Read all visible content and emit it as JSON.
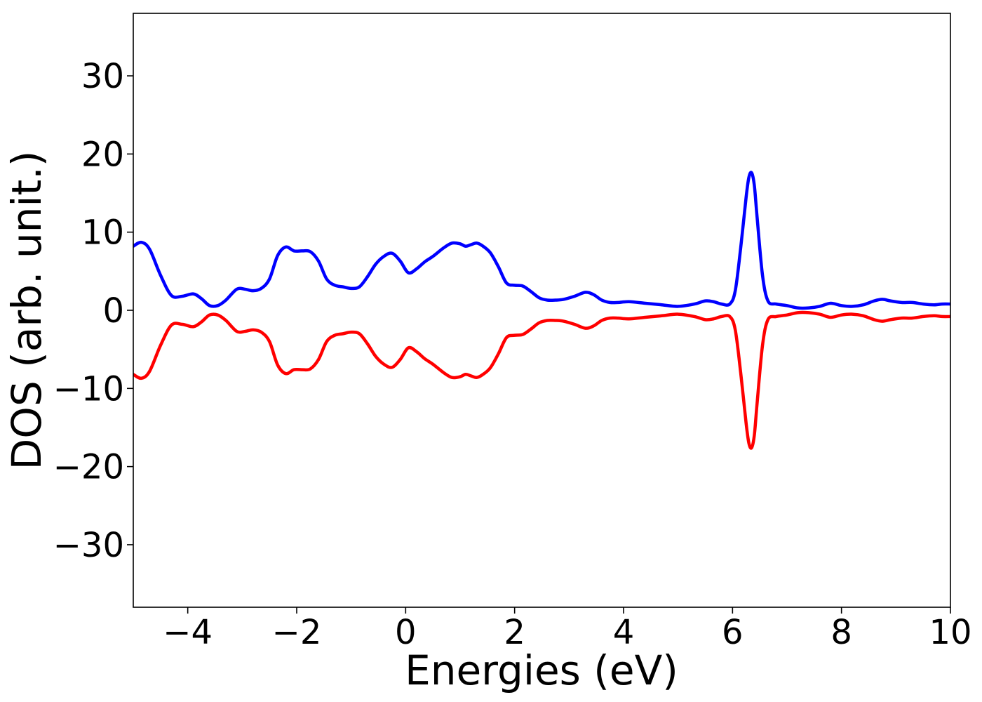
{
  "chart_data": {
    "type": "line",
    "title": "",
    "xlabel": "Energies (eV)",
    "ylabel": "DOS (arb. unit.)",
    "xlim": [
      -5,
      10
    ],
    "ylim": [
      -38,
      38
    ],
    "xticks": [
      -4,
      -2,
      0,
      2,
      4,
      6,
      8,
      10
    ],
    "xtick_labels": [
      "−4",
      "−2",
      "0",
      "2",
      "4",
      "6",
      "8",
      "10"
    ],
    "yticks": [
      -30,
      -20,
      -10,
      0,
      10,
      20,
      30
    ],
    "ytick_labels": [
      "−30",
      "−20",
      "−10",
      "0",
      "10",
      "20",
      "30"
    ],
    "grid": false,
    "legend": false,
    "series": [
      {
        "color": "#0000ff",
        "x": [
          -5.0,
          -4.85,
          -4.7,
          -4.5,
          -4.3,
          -4.1,
          -3.9,
          -3.75,
          -3.6,
          -3.45,
          -3.3,
          -3.1,
          -2.95,
          -2.8,
          -2.65,
          -2.5,
          -2.35,
          -2.2,
          -2.05,
          -1.9,
          -1.75,
          -1.6,
          -1.45,
          -1.3,
          -1.15,
          -1.0,
          -0.85,
          -0.7,
          -0.55,
          -0.4,
          -0.25,
          -0.1,
          0.05,
          0.2,
          0.35,
          0.5,
          0.7,
          0.85,
          1.0,
          1.1,
          1.2,
          1.3,
          1.4,
          1.55,
          1.7,
          1.85,
          2.0,
          2.15,
          2.3,
          2.45,
          2.6,
          2.75,
          2.9,
          3.1,
          3.3,
          3.45,
          3.6,
          3.75,
          3.9,
          4.1,
          4.4,
          4.7,
          5.0,
          5.3,
          5.5,
          5.65,
          5.8,
          5.95,
          6.05,
          6.15,
          6.25,
          6.3,
          6.35,
          6.4,
          6.45,
          6.55,
          6.65,
          6.8,
          7.0,
          7.2,
          7.4,
          7.6,
          7.8,
          8.0,
          8.2,
          8.4,
          8.6,
          8.75,
          8.9,
          9.1,
          9.3,
          9.5,
          9.7,
          9.85,
          10.0
        ],
        "y": [
          8.2,
          8.7,
          7.8,
          4.5,
          1.9,
          1.8,
          2.1,
          1.5,
          0.6,
          0.6,
          1.3,
          2.7,
          2.7,
          2.5,
          2.8,
          4.0,
          7.0,
          8.1,
          7.6,
          7.6,
          7.5,
          6.3,
          4.0,
          3.2,
          3.0,
          2.8,
          3.0,
          4.3,
          5.9,
          6.9,
          7.3,
          6.3,
          4.8,
          5.3,
          6.2,
          6.9,
          8.0,
          8.6,
          8.5,
          8.2,
          8.4,
          8.6,
          8.3,
          7.4,
          5.6,
          3.5,
          3.2,
          3.1,
          2.4,
          1.6,
          1.3,
          1.3,
          1.4,
          1.8,
          2.3,
          2.0,
          1.3,
          1.0,
          1.0,
          1.1,
          0.9,
          0.7,
          0.5,
          0.8,
          1.2,
          1.1,
          0.8,
          0.8,
          2.5,
          8.0,
          14.5,
          17.0,
          17.6,
          16.0,
          12.0,
          4.5,
          1.2,
          0.8,
          0.6,
          0.3,
          0.3,
          0.5,
          0.9,
          0.6,
          0.5,
          0.7,
          1.2,
          1.4,
          1.2,
          1.0,
          1.0,
          0.8,
          0.7,
          0.8,
          0.8
        ]
      },
      {
        "color": "#ff0000",
        "x": [
          -5.0,
          -4.85,
          -4.7,
          -4.5,
          -4.3,
          -4.1,
          -3.9,
          -3.75,
          -3.6,
          -3.45,
          -3.3,
          -3.1,
          -2.95,
          -2.8,
          -2.65,
          -2.5,
          -2.35,
          -2.2,
          -2.05,
          -1.9,
          -1.75,
          -1.6,
          -1.45,
          -1.3,
          -1.15,
          -1.0,
          -0.85,
          -0.7,
          -0.55,
          -0.4,
          -0.25,
          -0.1,
          0.05,
          0.2,
          0.35,
          0.5,
          0.7,
          0.85,
          1.0,
          1.1,
          1.2,
          1.3,
          1.4,
          1.55,
          1.7,
          1.85,
          2.0,
          2.15,
          2.3,
          2.45,
          2.6,
          2.75,
          2.9,
          3.1,
          3.3,
          3.45,
          3.6,
          3.75,
          3.9,
          4.1,
          4.4,
          4.7,
          5.0,
          5.3,
          5.5,
          5.65,
          5.8,
          5.95,
          6.05,
          6.15,
          6.25,
          6.3,
          6.35,
          6.4,
          6.45,
          6.55,
          6.65,
          6.8,
          7.0,
          7.2,
          7.4,
          7.6,
          7.8,
          8.0,
          8.2,
          8.4,
          8.6,
          8.75,
          8.9,
          9.1,
          9.3,
          9.5,
          9.7,
          9.85,
          10.0
        ],
        "y": [
          -8.2,
          -8.7,
          -7.8,
          -4.5,
          -1.9,
          -1.8,
          -2.1,
          -1.5,
          -0.6,
          -0.6,
          -1.3,
          -2.7,
          -2.7,
          -2.5,
          -2.8,
          -4.0,
          -7.0,
          -8.1,
          -7.6,
          -7.6,
          -7.5,
          -6.3,
          -4.0,
          -3.2,
          -3.0,
          -2.8,
          -3.0,
          -4.3,
          -5.9,
          -6.9,
          -7.3,
          -6.3,
          -4.8,
          -5.3,
          -6.2,
          -6.9,
          -8.0,
          -8.6,
          -8.5,
          -8.2,
          -8.4,
          -8.6,
          -8.3,
          -7.4,
          -5.6,
          -3.5,
          -3.2,
          -3.1,
          -2.4,
          -1.6,
          -1.3,
          -1.3,
          -1.4,
          -1.8,
          -2.3,
          -2.0,
          -1.3,
          -1.0,
          -1.0,
          -1.1,
          -0.9,
          -0.7,
          -0.5,
          -0.8,
          -1.2,
          -1.1,
          -0.8,
          -0.8,
          -2.5,
          -8.0,
          -14.5,
          -17.0,
          -17.6,
          -16.0,
          -12.0,
          -4.5,
          -1.2,
          -0.8,
          -0.6,
          -0.3,
          -0.3,
          -0.5,
          -0.9,
          -0.6,
          -0.5,
          -0.7,
          -1.2,
          -1.4,
          -1.2,
          -1.0,
          -1.0,
          -0.8,
          -0.7,
          -0.8,
          -0.8
        ]
      }
    ]
  }
}
